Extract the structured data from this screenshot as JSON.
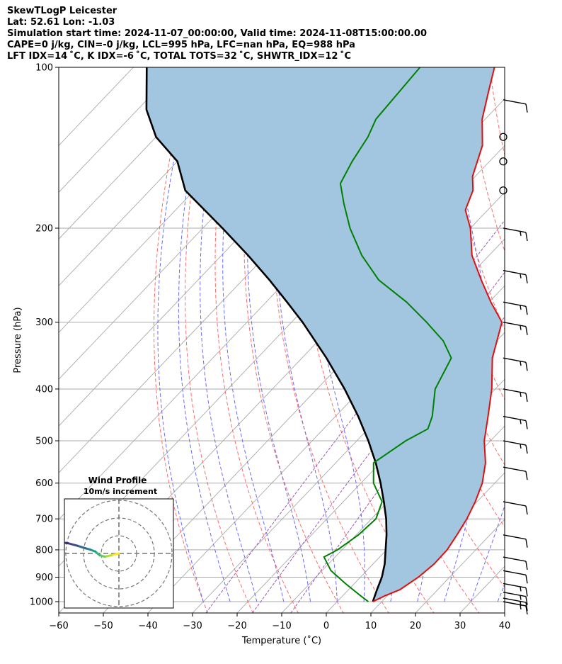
{
  "header": {
    "line1": "SkewTLogP Leicester",
    "line2": "Lat: 52.61   Lon: -1.03",
    "line3": "Simulation start time: 2024-11-07_00:00:00, Valid time: 2024-11-08T15:00:00.00",
    "line4": "CAPE=0 j/kg, CIN=-0 j/kg, LCL=995 hPa, LFC=nan hPa, EQ=988 hPa",
    "line5": "LFT IDX=14 ˚C, K IDX=-6 ˚C, TOTAL TOTS=32 ˚C, SHWTR_IDX=12 ˚C"
  },
  "chart_data": {
    "type": "line",
    "subtype": "skew-T log-P",
    "xlabel": "Temperature (˚C)",
    "ylabel": "Pressure (hPa)",
    "xlim": [
      -60,
      40
    ],
    "ylim": [
      1050,
      100
    ],
    "x_ticks": [
      "−60",
      "−50",
      "−40",
      "−30",
      "−20",
      "−10",
      "0",
      "10",
      "20",
      "30",
      "40"
    ],
    "y_ticks": [
      "100",
      "200",
      "300",
      "400",
      "500",
      "600",
      "700",
      "800",
      "900",
      "1000"
    ],
    "y_scale": "log",
    "grid": true,
    "colors": {
      "temperature": "#e01010",
      "dewpoint": "#008000",
      "parcel": "#000000",
      "cape_fill": "#a3c6e0",
      "dry_adiabats": "#ff6b6b",
      "moist_adiabats": "#6a6aff",
      "mixing_ratio": "#9b59b6",
      "isotherms": "#aaaaaa"
    },
    "series": [
      {
        "role": "temperature",
        "points": [
          [
            8,
            1000
          ],
          [
            9.5,
            975
          ],
          [
            11.5,
            950
          ],
          [
            13,
            900
          ],
          [
            13.7,
            850
          ],
          [
            13.6,
            800
          ],
          [
            12.6,
            750
          ],
          [
            11.4,
            700
          ],
          [
            9.6,
            650
          ],
          [
            7.2,
            600
          ],
          [
            3.6,
            550
          ],
          [
            -1.4,
            500
          ],
          [
            -5.8,
            450
          ],
          [
            -10.8,
            400
          ],
          [
            -17.3,
            350
          ],
          [
            -22.8,
            300
          ],
          [
            -29.6,
            275
          ],
          [
            -36.5,
            250
          ],
          [
            -43.8,
            225
          ],
          [
            -50,
            200
          ],
          [
            -55,
            185
          ],
          [
            -57.5,
            170
          ],
          [
            -60.6,
            160
          ],
          [
            -65,
            140
          ],
          [
            -70.7,
            125
          ],
          [
            -75.5,
            110
          ],
          [
            -79,
            100
          ]
        ]
      },
      {
        "role": "dewpoint",
        "points": [
          [
            7,
            1000
          ],
          [
            4,
            975
          ],
          [
            -2,
            925
          ],
          [
            -8,
            875
          ],
          [
            -12.5,
            825
          ],
          [
            -11,
            800
          ],
          [
            -9.5,
            750
          ],
          [
            -9,
            700
          ],
          [
            -11.3,
            650
          ],
          [
            -17.2,
            600
          ],
          [
            -21.5,
            550
          ],
          [
            -19,
            500
          ],
          [
            -16.6,
            475
          ],
          [
            -18.3,
            450
          ],
          [
            -23.5,
            400
          ],
          [
            -26.5,
            350
          ],
          [
            -32,
            325
          ],
          [
            -39.7,
            300
          ],
          [
            -48.5,
            275
          ],
          [
            -59.5,
            250
          ],
          [
            -68.5,
            225
          ],
          [
            -77,
            200
          ],
          [
            -83.6,
            180
          ],
          [
            -88.7,
            165
          ],
          [
            -90.8,
            150
          ],
          [
            -92.5,
            135
          ],
          [
            -94.5,
            125
          ],
          [
            -95.7,
            100
          ]
        ]
      },
      {
        "role": "parcel",
        "points": [
          [
            8,
            1000
          ],
          [
            6.4,
            950
          ],
          [
            4.8,
            900
          ],
          [
            2.6,
            850
          ],
          [
            -0.2,
            800
          ],
          [
            -3.2,
            750
          ],
          [
            -6.7,
            700
          ],
          [
            -10.9,
            650
          ],
          [
            -15.6,
            600
          ],
          [
            -21,
            550
          ],
          [
            -27.4,
            500
          ],
          [
            -34.9,
            450
          ],
          [
            -43.8,
            400
          ],
          [
            -54.5,
            350
          ],
          [
            -67.5,
            300
          ],
          [
            -75.3,
            275
          ],
          [
            -84,
            250
          ],
          [
            -94,
            225
          ],
          [
            -105.6,
            200
          ],
          [
            -122,
            170
          ],
          [
            -130,
            150
          ],
          [
            -140,
            135
          ],
          [
            -148,
            120
          ],
          [
            -157,
            100
          ]
        ]
      }
    ],
    "wind_barbs": [
      {
        "p": 1000,
        "speed_kt": 15
      },
      {
        "p": 985,
        "speed_kt": 15
      },
      {
        "p": 960,
        "speed_kt": 15
      },
      {
        "p": 925,
        "speed_kt": 15
      },
      {
        "p": 875,
        "speed_kt": 10
      },
      {
        "p": 825,
        "speed_kt": 10
      },
      {
        "p": 750,
        "speed_kt": 10
      },
      {
        "p": 650,
        "speed_kt": 10
      },
      {
        "p": 560,
        "speed_kt": 10
      },
      {
        "p": 500,
        "speed_kt": 15
      },
      {
        "p": 450,
        "speed_kt": 15
      },
      {
        "p": 400,
        "speed_kt": 15
      },
      {
        "p": 350,
        "speed_kt": 15
      },
      {
        "p": 300,
        "speed_kt": 15
      },
      {
        "p": 275,
        "speed_kt": 15
      },
      {
        "p": 240,
        "speed_kt": 15
      },
      {
        "p": 200,
        "speed_kt": 15
      },
      {
        "p": 170,
        "speed_kt": 0
      },
      {
        "p": 150,
        "speed_kt": 0
      },
      {
        "p": 135,
        "speed_kt": 0
      },
      {
        "p": 115,
        "speed_kt": 10
      }
    ],
    "inset": {
      "title_line1": "Wind Profile",
      "title_line2": "10m/s increment",
      "rings": 3,
      "hodograph": [
        [
          0,
          0
        ],
        [
          -1.2,
          -0.3
        ],
        [
          -2.2,
          -0.5
        ],
        [
          -3,
          -0.3
        ],
        [
          -3.7,
          0.3
        ],
        [
          -4.5,
          0.6
        ],
        [
          -5.2,
          0.8
        ],
        [
          -6.5,
          1.2
        ],
        [
          -8,
          1.6
        ],
        [
          -9.8,
          1.8
        ]
      ]
    }
  }
}
